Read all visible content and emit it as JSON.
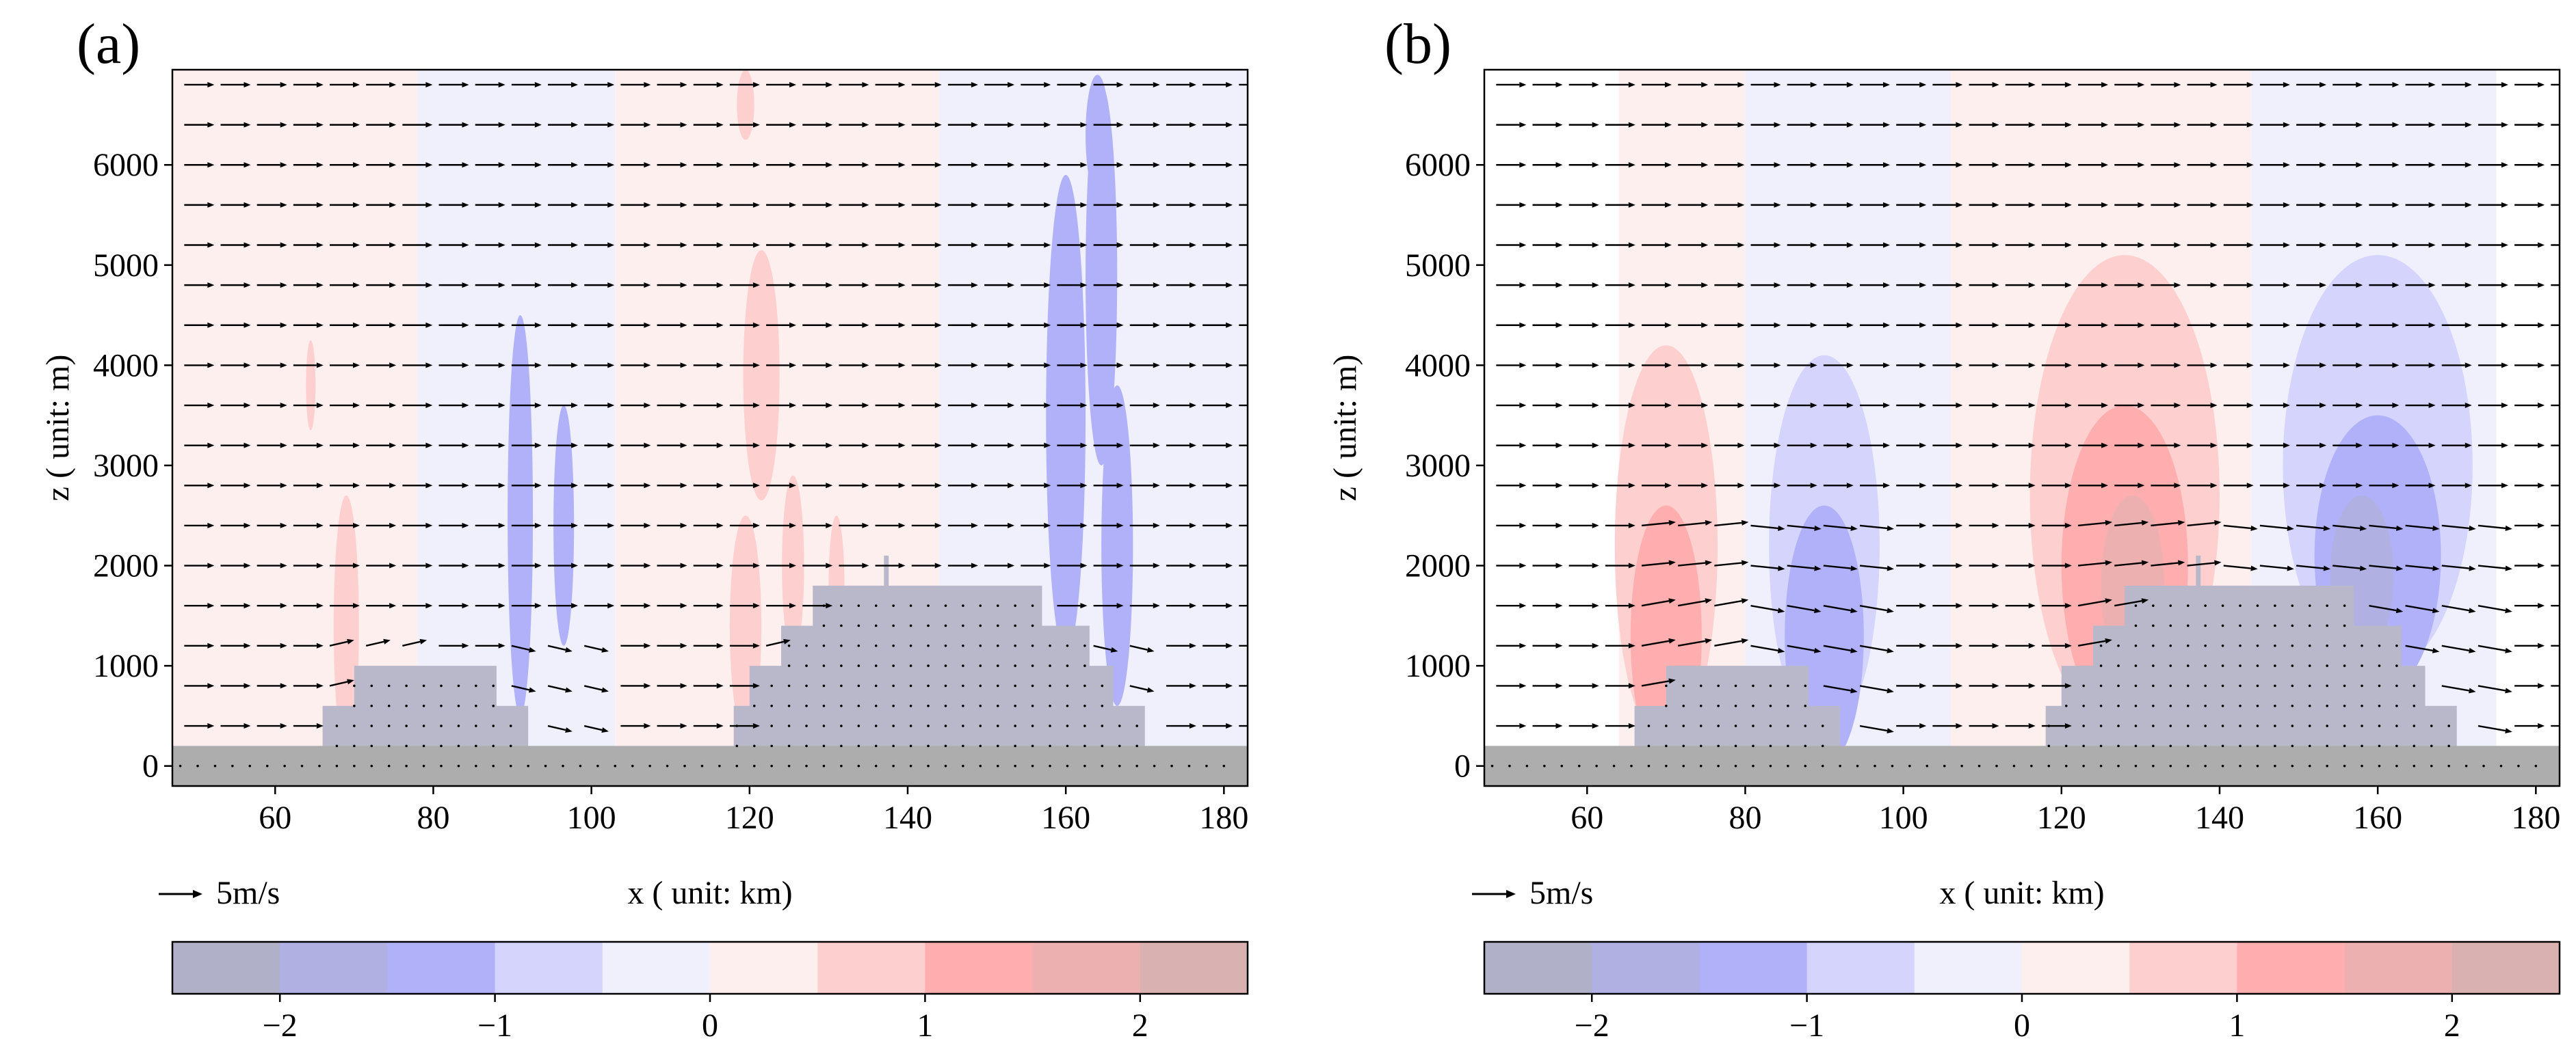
{
  "chart_data": [
    {
      "type": "contour",
      "panel_label": "(a)",
      "xlabel": "x ( unit: km)",
      "ylabel": "z ( unit: m)",
      "xlim": [
        47,
        183
      ],
      "ylim": [
        -200,
        6950
      ],
      "x_ticks": [
        60,
        80,
        100,
        120,
        140,
        160,
        180
      ],
      "y_ticks": [
        0,
        1000,
        2000,
        3000,
        4000,
        5000,
        6000
      ],
      "quiver_key": "5m/s",
      "terrain": [
        [
          47,
          200
        ],
        [
          66,
          200
        ],
        [
          66,
          600
        ],
        [
          70,
          600
        ],
        [
          70,
          1000
        ],
        [
          88,
          1000
        ],
        [
          88,
          600
        ],
        [
          92,
          600
        ],
        [
          92,
          200
        ],
        [
          118,
          200
        ],
        [
          118,
          600
        ],
        [
          120,
          600
        ],
        [
          120,
          1000
        ],
        [
          124,
          1000
        ],
        [
          124,
          1400
        ],
        [
          128,
          1400
        ],
        [
          128,
          1800
        ],
        [
          137,
          1800
        ],
        [
          137,
          2100
        ],
        [
          137.6,
          2100
        ],
        [
          137.6,
          1800
        ],
        [
          157,
          1800
        ],
        [
          157,
          1400
        ],
        [
          163,
          1400
        ],
        [
          163,
          1000
        ],
        [
          166,
          1000
        ],
        [
          166,
          600
        ],
        [
          170,
          600
        ],
        [
          170,
          200
        ],
        [
          183,
          200
        ]
      ],
      "contour_blobs": [
        {
          "level": 1,
          "x": 69,
          "z": 1400,
          "rx": 1.6,
          "rz": 1300
        },
        {
          "level": 1,
          "x": 119.5,
          "z": 1400,
          "rx": 2,
          "rz": 1100
        },
        {
          "level": 1,
          "x": 121.5,
          "z": 3900,
          "rx": 2.3,
          "rz": 1250
        },
        {
          "level": 1,
          "x": 125.5,
          "z": 2000,
          "rx": 1.4,
          "rz": 900
        },
        {
          "level": 1,
          "x": 119.5,
          "z": 6600,
          "rx": 1.1,
          "rz": 350
        },
        {
          "level": 1,
          "x": 131,
          "z": 1800,
          "rx": 1,
          "rz": 700
        },
        {
          "level": 1,
          "x": 64.5,
          "z": 3800,
          "rx": 0.6,
          "rz": 450
        },
        {
          "level": -1,
          "x": 91,
          "z": 2500,
          "rx": 1.6,
          "rz": 2000
        },
        {
          "level": -1,
          "x": 96.5,
          "z": 2400,
          "rx": 1.3,
          "rz": 1200
        },
        {
          "level": -1,
          "x": 160,
          "z": 3500,
          "rx": 2.5,
          "rz": 2400
        },
        {
          "level": -1,
          "x": 164.5,
          "z": 4900,
          "rx": 2,
          "rz": 1900
        },
        {
          "level": -1,
          "x": 166.5,
          "z": 2200,
          "rx": 2,
          "rz": 1600
        },
        {
          "level": -1,
          "x": 164,
          "z": 6300,
          "rx": 1.5,
          "rz": 600
        }
      ]
    },
    {
      "type": "contour",
      "panel_label": "(b)",
      "xlabel": "x ( unit: km)",
      "ylabel": "z ( unit: m)",
      "xlim": [
        47,
        183
      ],
      "ylim": [
        -200,
        6950
      ],
      "x_ticks": [
        60,
        80,
        100,
        120,
        140,
        160,
        180
      ],
      "y_ticks": [
        0,
        1000,
        2000,
        3000,
        4000,
        5000,
        6000
      ],
      "quiver_key": "5m/s",
      "terrain": [
        [
          47,
          200
        ],
        [
          66,
          200
        ],
        [
          66,
          600
        ],
        [
          70,
          600
        ],
        [
          70,
          1000
        ],
        [
          88,
          1000
        ],
        [
          88,
          600
        ],
        [
          92,
          600
        ],
        [
          92,
          200
        ],
        [
          118,
          200
        ],
        [
          118,
          600
        ],
        [
          120,
          600
        ],
        [
          120,
          1000
        ],
        [
          124,
          1000
        ],
        [
          124,
          1400
        ],
        [
          128,
          1400
        ],
        [
          128,
          1800
        ],
        [
          137,
          1800
        ],
        [
          137,
          2100
        ],
        [
          137.6,
          2100
        ],
        [
          137.6,
          1800
        ],
        [
          157,
          1800
        ],
        [
          157,
          1400
        ],
        [
          163,
          1400
        ],
        [
          163,
          1000
        ],
        [
          166,
          1000
        ],
        [
          166,
          600
        ],
        [
          170,
          600
        ],
        [
          170,
          200
        ],
        [
          183,
          200
        ]
      ],
      "contour_blobs": [
        {
          "level": 0.6,
          "x": 70,
          "z": 2200,
          "rx": 6.5,
          "rz": 2000
        },
        {
          "level": 1.1,
          "x": 70,
          "z": 1300,
          "rx": 4.5,
          "rz": 1300
        },
        {
          "level": -0.6,
          "x": 90,
          "z": 2200,
          "rx": 7,
          "rz": 1900
        },
        {
          "level": -1.1,
          "x": 90,
          "z": 1300,
          "rx": 5,
          "rz": 1300
        },
        {
          "level": 0.6,
          "x": 128,
          "z": 2700,
          "rx": 12,
          "rz": 2400
        },
        {
          "level": 1.1,
          "x": 128,
          "z": 2000,
          "rx": 8,
          "rz": 1600
        },
        {
          "level": 1.7,
          "x": 129,
          "z": 1800,
          "rx": 4,
          "rz": 900
        },
        {
          "level": -0.6,
          "x": 160,
          "z": 3000,
          "rx": 12,
          "rz": 2100
        },
        {
          "level": -1.1,
          "x": 160,
          "z": 2100,
          "rx": 8,
          "rz": 1400
        },
        {
          "level": -1.7,
          "x": 158,
          "z": 1900,
          "rx": 4,
          "rz": 800
        }
      ]
    }
  ],
  "colorbar": {
    "levels": [
      -2.5,
      -2,
      -1.5,
      -1,
      -0.5,
      0,
      0.5,
      1,
      1.5,
      2,
      2.5
    ],
    "colors": [
      "#b0b0c9",
      "#b0b0e3",
      "#b1b1fa",
      "#d4d4fc",
      "#f0f0fd",
      "#feefef",
      "#fecfcf",
      "#feaeae",
      "#ecb0b0",
      "#d9b1b1"
    ],
    "tick_labels": [
      "−2",
      "−1",
      "0",
      "1",
      "2"
    ]
  },
  "colors": {
    "terrain": "#b8b8ca",
    "ground": "#adadad",
    "arrow": "#000000"
  }
}
